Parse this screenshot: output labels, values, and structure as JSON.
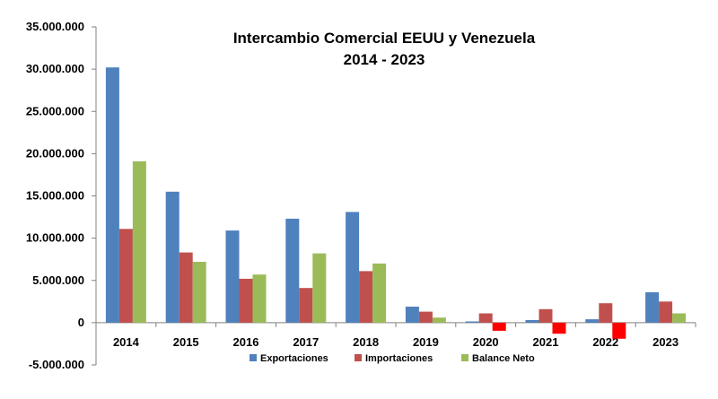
{
  "chart_data": {
    "type": "bar",
    "title": "Intercambio Comercial EEUU y Venezuela",
    "subtitle": "2014 - 2023",
    "categories": [
      "2014",
      "2015",
      "2016",
      "2017",
      "2018",
      "2019",
      "2020",
      "2021",
      "2022",
      "2023"
    ],
    "series": [
      {
        "name": "Exportaciones",
        "color": "#4F81BD",
        "values": [
          30200000,
          15500000,
          10900000,
          12300000,
          13100000,
          1900000,
          150000,
          300000,
          400000,
          3600000
        ]
      },
      {
        "name": "Importaciones",
        "color": "#C0504D",
        "values": [
          11100000,
          8300000,
          5200000,
          4100000,
          6100000,
          1300000,
          1100000,
          1600000,
          2300000,
          2500000
        ]
      },
      {
        "name": "Balance Neto",
        "color": "#9BBB59",
        "negative_color": "#FF0000",
        "values": [
          19100000,
          7200000,
          5700000,
          8200000,
          7000000,
          600000,
          -950000,
          -1300000,
          -1900000,
          1100000
        ]
      }
    ],
    "ylim": [
      -5000000,
      35000000
    ],
    "yticks": [
      -5000000,
      0,
      5000000,
      10000000,
      15000000,
      20000000,
      25000000,
      30000000,
      35000000
    ],
    "ytick_labels": [
      "-5.000.000",
      "0",
      "5.000.000",
      "10.000.000",
      "15.000.000",
      "20.000.000",
      "25.000.000",
      "30.000.000",
      "35.000.000"
    ],
    "xlabel": "",
    "ylabel": "",
    "grid": false,
    "legend_position": "bottom"
  }
}
